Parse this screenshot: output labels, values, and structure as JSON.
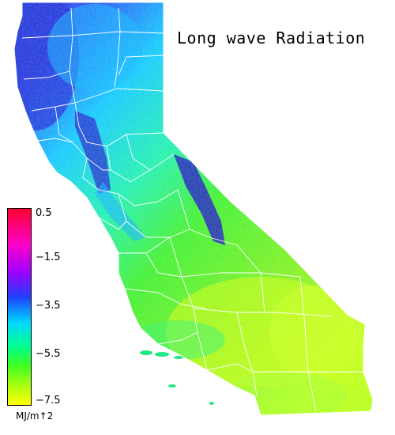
{
  "map": {
    "title": "Long wave Radiation",
    "region": "California",
    "colors": {
      "coast_north": "#2040e8",
      "central_valley": "#00a8ff",
      "sierra": "#2020d0",
      "interior": "#40ee30",
      "desert": "#c8ff10",
      "county_lines": "#ffffff"
    }
  },
  "legend": {
    "ticks": [
      {
        "label": "0.5",
        "value": 0.5
      },
      {
        "label": "−1.5",
        "value": -1.5
      },
      {
        "label": "−3.5",
        "value": -3.5
      },
      {
        "label": "−5.5",
        "value": -5.5
      },
      {
        "label": "−7.5",
        "value": -7.5
      }
    ],
    "unit": "MJ/m↑2",
    "range": [
      -7.5,
      0.5
    ],
    "color_stops": [
      "#ff0030",
      "#ff00c8",
      "#a000ff",
      "#2040ff",
      "#00d8ff",
      "#00ff90",
      "#40ff20",
      "#a8ff10",
      "#ffff00"
    ]
  }
}
